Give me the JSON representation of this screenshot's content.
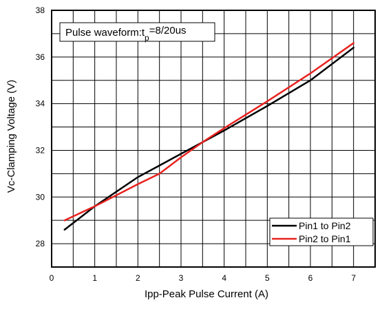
{
  "chart_data": {
    "type": "line",
    "annotation": {
      "prefix": "Pulse waveform:t",
      "subscript": "p",
      "suffix": "=8/20us"
    },
    "xlabel": "Ipp-Peak Pulse Current (A)",
    "ylabel": "Vc-Clamping Voltage (V)",
    "xlim": [
      0,
      7.5
    ],
    "ylim": [
      27,
      38
    ],
    "xticks": [
      0,
      1,
      2,
      3,
      4,
      5,
      6,
      7
    ],
    "yticks": [
      28,
      30,
      32,
      34,
      36,
      38
    ],
    "grid": true,
    "legend_position": "bottom-right",
    "series": [
      {
        "name": "Pin1 to Pin2",
        "color": "#000000",
        "x": [
          0.3,
          1.0,
          2.0,
          2.5,
          3.0,
          3.5,
          4.0,
          5.0,
          6.0,
          7.0
        ],
        "y": [
          28.6,
          29.6,
          30.85,
          31.35,
          31.85,
          32.35,
          32.85,
          33.9,
          35.0,
          36.4
        ]
      },
      {
        "name": "Pin2 to Pin1",
        "color": "#e8211d",
        "x": [
          0.3,
          1.0,
          2.0,
          2.5,
          3.0,
          3.5,
          4.0,
          5.0,
          6.0,
          7.0
        ],
        "y": [
          29.0,
          29.6,
          30.55,
          31.0,
          31.7,
          32.35,
          32.95,
          34.1,
          35.3,
          36.6
        ]
      }
    ]
  }
}
